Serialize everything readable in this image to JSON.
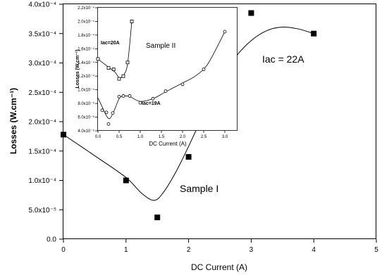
{
  "chart_data": [
    {
      "type": "scatter",
      "xlabel": "DC Current (A)",
      "ylabel": "Losses (W.cm⁻¹)",
      "xlim": [
        0,
        5
      ],
      "ylim": [
        0,
        0.0004
      ],
      "x_ticks": [
        "0",
        "1",
        "2",
        "3",
        "4",
        "5"
      ],
      "y_ticks": [
        "0.0",
        "5.0x10⁻⁵",
        "1.0x10⁻⁴",
        "1.5x10⁻⁴",
        "2.0x10⁻⁴",
        "2.5x10⁻⁴",
        "3.0x10⁻⁴",
        "3.5x10⁻⁴",
        "4.0x10⁻⁴"
      ],
      "annotations": [
        "Iac = 22A",
        "Sample I"
      ],
      "series": [
        {
          "marker": "filled-square",
          "points": [
            [
              0,
              0.000178
            ],
            [
              1,
              0.0001
            ],
            [
              1.5,
              3.7e-05
            ],
            [
              2,
              0.00014
            ],
            [
              3,
              0.000385
            ],
            [
              4,
              0.00035
            ]
          ]
        }
      ],
      "fit_curve": [
        [
          0,
          0.000178
        ],
        [
          0.5,
          0.000142
        ],
        [
          1,
          0.000105
        ],
        [
          1.25,
          7.8e-05
        ],
        [
          1.45,
          6.6e-05
        ],
        [
          1.6,
          8e-05
        ],
        [
          1.8,
          0.000115
        ],
        [
          2,
          0.000158
        ],
        [
          2.25,
          0.000215
        ],
        [
          2.5,
          0.000268
        ],
        [
          2.75,
          0.00031
        ],
        [
          3,
          0.000338
        ],
        [
          3.25,
          0.000355
        ],
        [
          3.5,
          0.000361
        ],
        [
          3.75,
          0.000358
        ],
        [
          4,
          0.00035
        ]
      ],
      "grid": false
    },
    {
      "type": "scatter",
      "inset": true,
      "xlabel": "DC Current (A)",
      "ylabel": "Losses (W.cm⁻¹)",
      "xlim": [
        0,
        3.3
      ],
      "ylim": [
        4e-05,
        0.00022
      ],
      "x_ticks": [
        "0.0",
        "0.5",
        "1.0",
        "1.5",
        "2.0",
        "2.5",
        "3.0"
      ],
      "y_ticks": [
        "4.0x10⁻⁵",
        "6.0x10⁻⁵",
        "8.0x10⁻⁵",
        "1.0x10⁻⁴",
        "1.2x10⁻⁴",
        "1.4x10⁻⁴",
        "1.6x10⁻⁴",
        "1.8x10⁻⁴",
        "2.0x10⁻⁴",
        "2.2x10⁻⁴"
      ],
      "annotations": [
        "Iac=20A",
        "Sample II",
        "Iac=19A"
      ],
      "series": [
        {
          "name": "Iac=20A",
          "marker": "open-square",
          "points": [
            [
              0,
              0.000145
            ],
            [
              0.25,
              0.000132
            ],
            [
              0.37,
              0.00013
            ],
            [
              0.5,
              0.000116
            ],
            [
              0.6,
              0.00012
            ],
            [
              0.7,
              0.00014
            ],
            [
              0.8,
              0.0002
            ]
          ],
          "fit_curve": [
            [
              0,
              0.000145
            ],
            [
              0.25,
              0.000133
            ],
            [
              0.4,
              0.000126
            ],
            [
              0.5,
              0.000118
            ],
            [
              0.6,
              0.000121
            ],
            [
              0.7,
              0.000138
            ],
            [
              0.8,
              0.0002
            ]
          ]
        },
        {
          "name": "Iac=19A",
          "marker": "open-circle",
          "points": [
            [
              0.1,
              7e-05
            ],
            [
              0.2,
              6.7e-05
            ],
            [
              0.25,
              5e-05
            ],
            [
              0.35,
              6.6e-05
            ],
            [
              0.5,
              9e-05
            ],
            [
              0.6,
              9.1e-05
            ],
            [
              0.75,
              9.1e-05
            ],
            [
              1.0,
              8.1e-05
            ],
            [
              1.3,
              8.7e-05
            ],
            [
              1.6,
              9.8e-05
            ],
            [
              2.0,
              0.000108
            ],
            [
              2.5,
              0.00013
            ],
            [
              3.0,
              0.000185
            ]
          ],
          "fit_curve": [
            [
              0,
              8.8e-05
            ],
            [
              0.1,
              7.5e-05
            ],
            [
              0.2,
              6.2e-05
            ],
            [
              0.28,
              5.8e-05
            ],
            [
              0.38,
              6.9e-05
            ],
            [
              0.5,
              8.7e-05
            ],
            [
              0.6,
              9.1e-05
            ],
            [
              0.75,
              9e-05
            ],
            [
              1.0,
              8.3e-05
            ],
            [
              1.3,
              8.7e-05
            ],
            [
              1.6,
              9.7e-05
            ],
            [
              2.0,
              0.00011
            ],
            [
              2.3,
              0.00012
            ],
            [
              2.6,
              0.000138
            ],
            [
              3.0,
              0.000185
            ]
          ]
        }
      ],
      "grid": false
    }
  ]
}
